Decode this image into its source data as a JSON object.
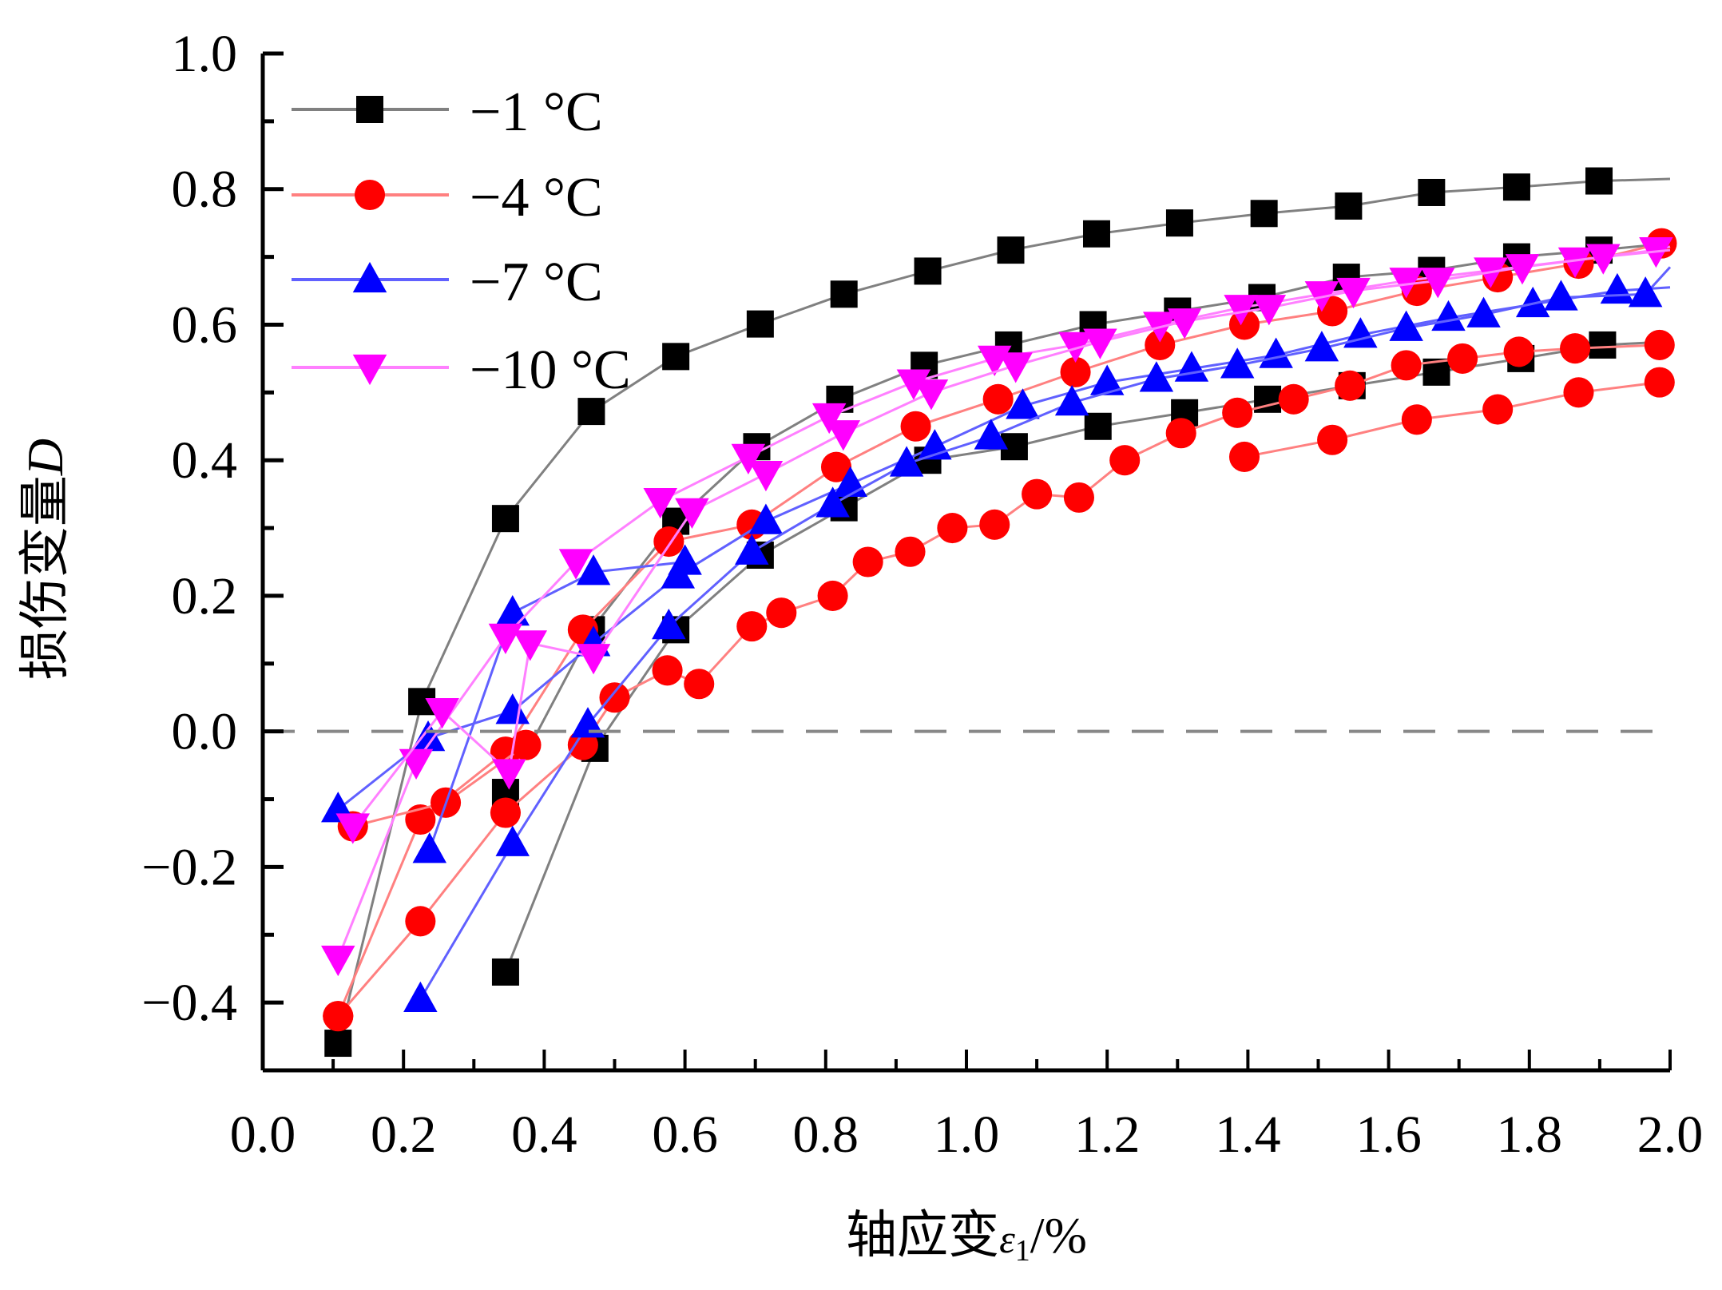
{
  "chart_data": {
    "type": "line",
    "title": "",
    "xlabel": "轴应变ε1/%",
    "xlabel_main": "轴应变",
    "xlabel_symbol": "ε",
    "xlabel_sub": "1",
    "xlabel_unit": "/%",
    "ylabel": "损伤变量D",
    "ylabel_main": "损伤变量",
    "ylabel_symbol": "D",
    "xlim": [
      0.0,
      2.0
    ],
    "ylim": [
      -0.5,
      1.0
    ],
    "xticks": [
      "0.0",
      "0.2",
      "0.4",
      "0.6",
      "0.8",
      "1.0",
      "1.2",
      "1.4",
      "1.6",
      "1.8",
      "2.0"
    ],
    "xtick_values": [
      0,
      0.2,
      0.4,
      0.6,
      0.8,
      1.0,
      1.2,
      1.4,
      1.6,
      1.8,
      2.0
    ],
    "yticks": [
      "−0.4",
      "−0.2",
      "0.0",
      "0.2",
      "0.4",
      "0.6",
      "0.8",
      "1.0"
    ],
    "ytick_values": [
      -0.4,
      -0.2,
      0,
      0.2,
      0.4,
      0.6,
      0.8,
      1.0
    ],
    "reference_line": {
      "y": 0.0,
      "style": "dashed",
      "color": "#888888"
    },
    "grid": false,
    "legend_position": "top-left",
    "legend": [
      {
        "label": "−1 °C",
        "color": "#000000",
        "line_color": "#808080",
        "marker": "square"
      },
      {
        "label": "−4 °C",
        "color": "#ff0000",
        "line_color": "#ff8080",
        "marker": "circle"
      },
      {
        "label": "−7 °C",
        "color": "#0000ff",
        "line_color": "#6060ff",
        "marker": "triangle-up"
      },
      {
        "label": "−10 °C",
        "color": "#ff00ff",
        "line_color": "#ff80ff",
        "marker": "triangle-down"
      }
    ],
    "series": [
      {
        "name": "−1 °C (a)",
        "group": 0,
        "x": [
          0.107,
          0.226,
          0.345,
          0.467,
          0.587,
          0.707,
          0.826,
          0.945,
          1.063,
          1.185,
          1.303,
          1.423,
          1.543,
          1.661,
          1.782,
          1.899
        ],
        "y": [
          -0.46,
          0.044,
          0.314,
          0.472,
          0.553,
          0.601,
          0.645,
          0.679,
          0.71,
          0.734,
          0.75,
          0.764,
          0.775,
          0.795,
          0.803,
          0.812
        ],
        "curve_end": 0.815
      },
      {
        "name": "−1 °C (b)",
        "group": 0,
        "x": [
          0.345,
          0.467,
          0.587,
          0.702,
          0.82,
          0.94,
          1.06,
          1.18,
          1.3,
          1.42,
          1.54,
          1.661,
          1.782,
          1.899
        ],
        "y": [
          -0.09,
          0.15,
          0.31,
          0.42,
          0.49,
          0.54,
          0.57,
          0.6,
          0.62,
          0.64,
          0.67,
          0.68,
          0.7,
          0.71
        ],
        "curve_end": 0.72
      },
      {
        "name": "−1 °C (c)",
        "group": 0,
        "x": [
          0.345,
          0.472,
          0.587,
          0.707,
          0.826,
          0.945,
          1.068,
          1.187,
          1.31,
          1.428,
          1.548,
          1.668,
          1.788,
          1.904
        ],
        "y": [
          -0.355,
          -0.025,
          0.15,
          0.26,
          0.33,
          0.4,
          0.42,
          0.45,
          0.47,
          0.49,
          0.51,
          0.53,
          0.55,
          0.57
        ],
        "curve_end": 0.575
      },
      {
        "name": "−4 °C (a)",
        "group": 1,
        "x": [
          0.107,
          0.224,
          0.345,
          0.455,
          0.577,
          0.695,
          0.815,
          0.928,
          1.045,
          1.155,
          1.275,
          1.395,
          1.52,
          1.64,
          1.755,
          1.87,
          1.988
        ],
        "y": [
          -0.42,
          -0.13,
          -0.03,
          0.15,
          0.28,
          0.305,
          0.39,
          0.45,
          0.49,
          0.53,
          0.57,
          0.6,
          0.62,
          0.65,
          0.67,
          0.69,
          0.72
        ],
        "curve_end": 0.72
      },
      {
        "name": "−4 °C (b)",
        "group": 1,
        "x": [
          0.107,
          0.224,
          0.345,
          0.455,
          0.5,
          0.575,
          0.62,
          0.695,
          0.737,
          0.81,
          0.86,
          0.92,
          0.98,
          1.04,
          1.1,
          1.16,
          1.225,
          1.305,
          1.385,
          1.465,
          1.545,
          1.625,
          1.705,
          1.785,
          1.865,
          1.985
        ],
        "y": [
          -0.42,
          -0.28,
          -0.12,
          -0.02,
          0.05,
          0.09,
          0.07,
          0.155,
          0.175,
          0.2,
          0.25,
          0.265,
          0.3,
          0.305,
          0.35,
          0.345,
          0.4,
          0.44,
          0.47,
          0.49,
          0.51,
          0.54,
          0.55,
          0.56,
          0.565,
          0.57
        ],
        "curve_end": 0.575
      },
      {
        "name": "−4 °C (c)",
        "group": 1,
        "x": [
          0.128,
          0.26,
          0.374
        ],
        "y": [
          -0.14,
          -0.105,
          -0.02
        ],
        "curve_end": null
      },
      {
        "name": "−4 °C (d)",
        "group": 1,
        "x": [
          1.395,
          1.52,
          1.64,
          1.755,
          1.87,
          1.985
        ],
        "y": [
          0.405,
          0.43,
          0.46,
          0.475,
          0.5,
          0.515
        ],
        "curve_end": 0.52
      },
      {
        "name": "−7 °C (a)",
        "group": 2,
        "x": [
          0.107,
          0.235,
          0.355,
          0.47,
          0.59,
          0.715,
          0.835,
          0.955,
          1.08,
          1.2,
          1.32,
          1.44,
          1.56,
          1.685,
          1.805,
          1.925
        ],
        "y": [
          -0.115,
          -0.01,
          0.03,
          0.13,
          0.23,
          0.31,
          0.365,
          0.42,
          0.48,
          0.515,
          0.535,
          0.555,
          0.585,
          0.61,
          0.63,
          0.65
        ],
        "curve_end": 0.655
      },
      {
        "name": "−7 °C (b)",
        "group": 2,
        "x": [
          0.224,
          0.355,
          0.462,
          0.577,
          0.695,
          0.81,
          0.915,
          1.035,
          1.15,
          1.27,
          1.385,
          1.505,
          1.625,
          1.735,
          1.845,
          1.965
        ],
        "y": [
          -0.395,
          -0.165,
          0.01,
          0.155,
          0.265,
          0.335,
          0.395,
          0.435,
          0.485,
          0.52,
          0.54,
          0.565,
          0.595,
          0.615,
          0.64,
          0.645
        ],
        "curve_end": 0.685
      },
      {
        "name": "−7 °C (c)",
        "group": 2,
        "x": [
          0.237,
          0.355,
          0.47,
          0.6
        ],
        "y": [
          -0.175,
          0.175,
          0.235,
          0.25
        ],
        "curve_end": null
      },
      {
        "name": "−10 °C (a)",
        "group": 3,
        "x": [
          0.107,
          0.218,
          0.345,
          0.445,
          0.565,
          0.69,
          0.805,
          0.925,
          1.04,
          1.155,
          1.275,
          1.39,
          1.505,
          1.625,
          1.745,
          1.865,
          1.98
        ],
        "y": [
          -0.335,
          -0.045,
          0.14,
          0.25,
          0.34,
          0.405,
          0.465,
          0.515,
          0.55,
          0.57,
          0.6,
          0.625,
          0.645,
          0.665,
          0.68,
          0.695,
          0.71
        ],
        "curve_end": 0.715
      },
      {
        "name": "−10 °C (b)",
        "group": 3,
        "x": [
          0.128,
          0.255,
          0.35,
          0.38,
          0.47,
          0.61,
          0.715,
          0.825,
          0.95,
          1.07,
          1.19,
          1.31,
          1.43,
          1.55,
          1.67,
          1.79,
          1.905
        ],
        "y": [
          -0.14,
          0.03,
          -0.06,
          0.13,
          0.11,
          0.325,
          0.38,
          0.44,
          0.5,
          0.54,
          0.575,
          0.605,
          0.625,
          0.65,
          0.665,
          0.685,
          0.7
        ],
        "curve_end": 0.71
      }
    ]
  }
}
